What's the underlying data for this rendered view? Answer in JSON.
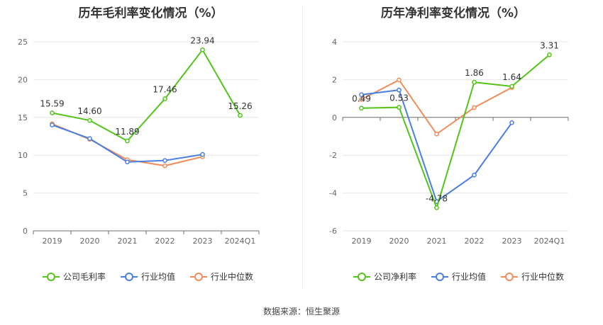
{
  "source_label": "数据来源：恒生聚源",
  "chart_data": [
    {
      "type": "line",
      "title": "历年毛利率变化情况（%）",
      "categories": [
        "2019",
        "2020",
        "2021",
        "2022",
        "2023",
        "2024Q1"
      ],
      "ylim": [
        0,
        25
      ],
      "yticks": [
        0,
        5,
        10,
        15,
        20,
        25
      ],
      "grid": true,
      "legend_position": "bottom",
      "series": [
        {
          "name": "公司毛利率",
          "color": "#52c41a",
          "values": [
            15.59,
            14.6,
            11.89,
            17.46,
            23.94,
            15.26
          ],
          "labels": [
            "15.59",
            "14.60",
            "11.89",
            "17.46",
            "23.94",
            "15.26"
          ]
        },
        {
          "name": "行业均值",
          "color": "#4a7ee0",
          "values": [
            14.0,
            12.2,
            9.1,
            9.3,
            10.1,
            null
          ],
          "labels": []
        },
        {
          "name": "行业中位数",
          "color": "#f08c5a",
          "values": [
            14.15,
            12.1,
            9.4,
            8.6,
            9.8,
            null
          ],
          "labels": []
        }
      ]
    },
    {
      "type": "line",
      "title": "历年净利率变化情况（%）",
      "categories": [
        "2019",
        "2020",
        "2021",
        "2022",
        "2023",
        "2024Q1"
      ],
      "ylim": [
        -6,
        4
      ],
      "yticks": [
        -6,
        -4,
        -2,
        0,
        2,
        4
      ],
      "grid": true,
      "legend_position": "bottom",
      "series": [
        {
          "name": "公司净利率",
          "color": "#52c41a",
          "values": [
            0.49,
            0.53,
            -4.78,
            1.86,
            1.64,
            3.31
          ],
          "labels": [
            "0.49",
            "0.53",
            "-4.78",
            "1.86",
            "1.64",
            "3.31"
          ]
        },
        {
          "name": "行业均值",
          "color": "#4a7ee0",
          "values": [
            1.2,
            1.45,
            -4.45,
            -3.05,
            -0.28,
            null
          ],
          "labels": []
        },
        {
          "name": "行业中位数",
          "color": "#f08c5a",
          "values": [
            0.95,
            1.98,
            -0.88,
            0.52,
            1.58,
            null
          ],
          "labels": []
        }
      ]
    }
  ]
}
